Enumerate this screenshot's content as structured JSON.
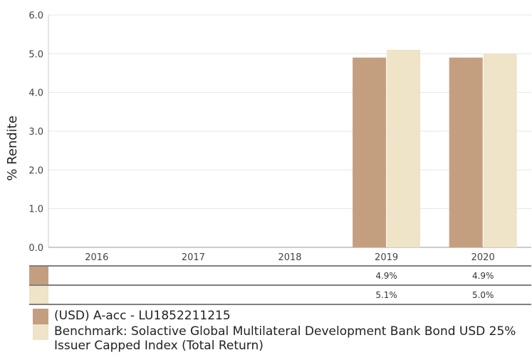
{
  "chart_data": {
    "type": "bar",
    "ylabel": "% Rendite",
    "categories": [
      "2016",
      "2017",
      "2018",
      "2019",
      "2020"
    ],
    "ylim": [
      0,
      6
    ],
    "yticks": [
      "0.0",
      "1.0",
      "2.0",
      "3.0",
      "4.0",
      "5.0",
      "6.0"
    ],
    "grid": true,
    "legend_position": "bottom",
    "series": [
      {
        "name": "(USD) A-acc - LU1852211215",
        "color": "#c49f7f",
        "values": [
          null,
          null,
          null,
          4.9,
          4.9
        ],
        "labels": [
          "",
          "",
          "",
          "4.9%",
          "4.9%"
        ]
      },
      {
        "name": "Benchmark: Solactive Global Multilateral Development Bank Bond USD 25% Issuer Capped Index (Total Return)",
        "color": "#efe3c8",
        "values": [
          null,
          null,
          null,
          5.1,
          5.0
        ],
        "labels": [
          "",
          "",
          "",
          "5.1%",
          "5.0%"
        ]
      }
    ]
  }
}
